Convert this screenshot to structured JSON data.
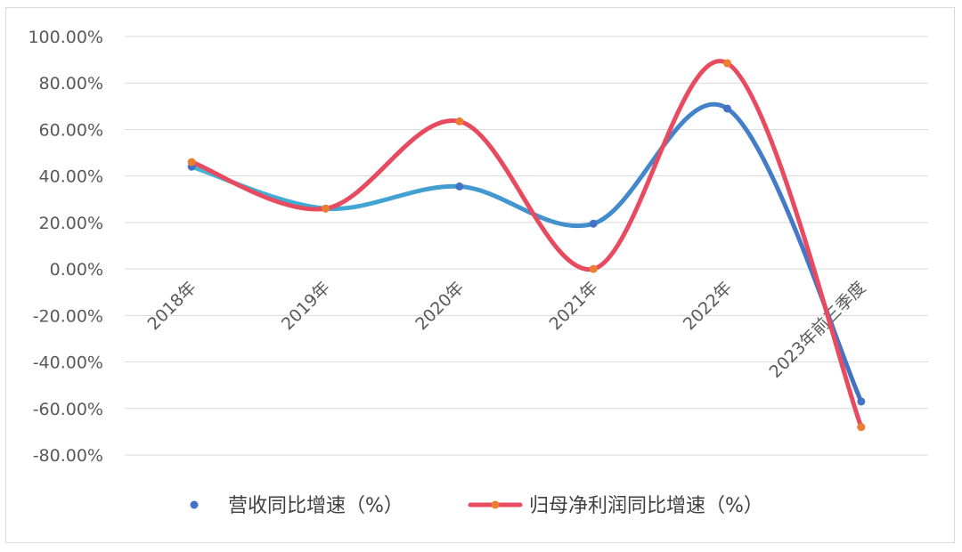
{
  "chart_data": {
    "type": "line",
    "categories": [
      "2018年",
      "2019年",
      "2020年",
      "2021年",
      "2022年",
      "2023年前三季度"
    ],
    "series": [
      {
        "name": "营收同比增速（%）",
        "values": [
          44.0,
          26.0,
          35.5,
          19.5,
          69.0,
          -57.0
        ],
        "color": "#4472C4",
        "line_gradient": [
          "#41B6D8",
          "#4472C4"
        ],
        "marker_color": "#4472C4"
      },
      {
        "name": "归母净利润同比增速（%）",
        "values": [
          46.0,
          26.0,
          63.5,
          0.0,
          88.5,
          -68.0
        ],
        "color": "#E84A5F",
        "marker_color": "#ED7D31"
      }
    ],
    "yticks": [
      "100.00%",
      "80.00%",
      "60.00%",
      "40.00%",
      "20.00%",
      "0.00%",
      "-20.00%",
      "-40.00%",
      "-60.00%",
      "-80.00%"
    ],
    "ylim": [
      -80,
      100
    ],
    "grid": true,
    "legend": "bottom",
    "smooth": true
  }
}
